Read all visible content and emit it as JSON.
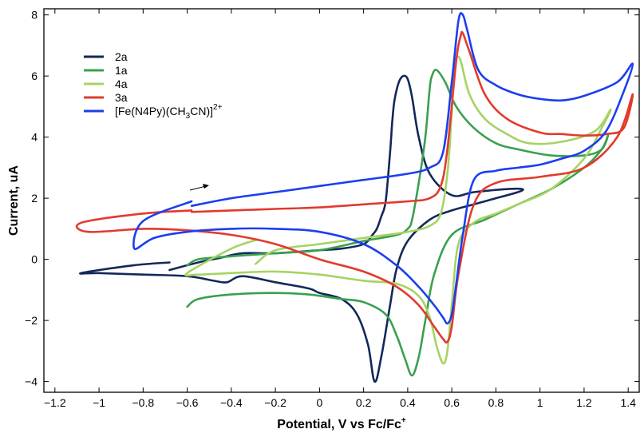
{
  "chart_data": {
    "type": "line",
    "title": "",
    "xlabel_main": "Potential, V vs Fc/Fc",
    "xlabel_sup": "+",
    "ylabel": "Current, uA",
    "xlim": [
      -1.25,
      1.45
    ],
    "ylim": [
      -4.35,
      8.2
    ],
    "x_ticks": [
      -1.2,
      -1,
      -0.8,
      -0.6,
      -0.4,
      -0.2,
      0,
      0.2,
      0.4,
      0.6,
      0.8,
      1,
      1.2,
      1.4
    ],
    "x_tick_labels": [
      "−1.2",
      "−1",
      "−0.8",
      "−0.6",
      "−0.4",
      "−0.2",
      "0",
      "0.2",
      "0.4",
      "0.6",
      "0.8",
      "1",
      "1.2",
      "1.4"
    ],
    "y_ticks": [
      -4,
      -2,
      0,
      2,
      4,
      6,
      8
    ],
    "y_tick_labels": [
      "−4",
      "−2",
      "0",
      "2",
      "4",
      "6",
      "8"
    ],
    "grid": false,
    "legend_position": "top-left",
    "annotation": "arrow indicating scan direction (positive)",
    "series": [
      {
        "name": "2a",
        "color": "#13285a",
        "x": [
          -0.68,
          -0.85,
          -1.08,
          -1.0,
          -0.8,
          -0.6,
          -0.48,
          -0.42,
          -0.35,
          -0.2,
          -0.05,
          0.0,
          0.1,
          0.17,
          0.22,
          0.25,
          0.28,
          0.32,
          0.35,
          0.4,
          0.5,
          0.6,
          0.7,
          0.8,
          0.9,
          0.92,
          0.85,
          0.7,
          0.6,
          0.5,
          0.45,
          0.42,
          0.4,
          0.38,
          0.36,
          0.34,
          0.33,
          0.32,
          0.3,
          0.28,
          0.26,
          0.24,
          0.2,
          0.1,
          0.0,
          -0.2,
          -0.35,
          -0.45,
          -0.55,
          -0.68
        ],
        "y": [
          -0.1,
          -0.2,
          -0.45,
          -0.45,
          -0.5,
          -0.55,
          -0.7,
          -0.75,
          -0.55,
          -0.75,
          -0.95,
          -1.1,
          -1.3,
          -1.8,
          -2.8,
          -4.0,
          -3.2,
          -1.5,
          -0.3,
          0.6,
          1.3,
          1.6,
          1.8,
          2.0,
          2.2,
          2.3,
          2.3,
          2.2,
          2.1,
          2.8,
          4.0,
          5.3,
          5.9,
          6.0,
          5.8,
          5.2,
          4.5,
          3.5,
          1.9,
          1.4,
          1.0,
          0.8,
          0.5,
          0.35,
          0.3,
          0.2,
          0.2,
          0.05,
          -0.1,
          -0.35
        ]
      },
      {
        "name": "1a",
        "color": "#3aa04e",
        "x": [
          -0.6,
          -0.55,
          -0.4,
          -0.2,
          -0.05,
          0.1,
          0.2,
          0.3,
          0.35,
          0.39,
          0.42,
          0.45,
          0.48,
          0.52,
          0.6,
          0.75,
          0.9,
          1.05,
          1.2,
          1.28,
          1.31,
          1.28,
          1.2,
          1.05,
          0.9,
          0.8,
          0.7,
          0.62,
          0.57,
          0.53,
          0.51,
          0.5,
          0.48,
          0.45,
          0.42,
          0.4,
          0.35,
          0.2,
          0.0,
          -0.2,
          -0.4,
          -0.55,
          -0.6
        ],
        "y": [
          -1.55,
          -1.3,
          -1.15,
          -1.1,
          -1.15,
          -1.3,
          -1.4,
          -1.8,
          -2.5,
          -3.3,
          -3.8,
          -3.2,
          -2.0,
          -0.5,
          0.8,
          1.3,
          1.8,
          2.3,
          3.0,
          3.6,
          4.1,
          3.6,
          3.4,
          3.4,
          3.6,
          3.8,
          4.3,
          5.0,
          5.8,
          6.2,
          6.0,
          5.6,
          4.0,
          2.5,
          1.3,
          1.0,
          0.8,
          0.6,
          0.3,
          0.2,
          0.1,
          0.0,
          -0.2
        ]
      },
      {
        "name": "4a",
        "color": "#a6d363",
        "x": [
          -0.28,
          -0.4,
          -0.6,
          -0.55,
          -0.4,
          -0.2,
          0.0,
          0.2,
          0.35,
          0.45,
          0.5,
          0.53,
          0.56,
          0.58,
          0.6,
          0.63,
          0.7,
          0.8,
          0.9,
          1.05,
          1.2,
          1.28,
          1.32,
          1.25,
          1.1,
          0.95,
          0.85,
          0.75,
          0.68,
          0.64,
          0.62,
          0.61,
          0.6,
          0.58,
          0.55,
          0.5,
          0.4,
          0.2,
          0.0,
          -0.2,
          -0.29
        ],
        "y": [
          0.65,
          0.35,
          -0.45,
          -0.5,
          -0.45,
          -0.4,
          -0.5,
          -0.7,
          -0.8,
          -1.2,
          -1.9,
          -2.8,
          -3.4,
          -3.0,
          -1.5,
          0.5,
          1.2,
          1.5,
          1.8,
          2.3,
          3.3,
          4.3,
          4.9,
          4.2,
          3.85,
          3.8,
          4.1,
          4.6,
          5.4,
          6.5,
          6.6,
          6.3,
          4.8,
          2.8,
          1.5,
          1.1,
          0.9,
          0.7,
          0.5,
          0.3,
          -0.15
        ]
      },
      {
        "name": "3a",
        "color": "#e23a2d",
        "x": [
          -0.58,
          -0.8,
          -1.08,
          -1.05,
          -0.8,
          -0.6,
          -0.4,
          -0.2,
          0.0,
          0.2,
          0.35,
          0.45,
          0.52,
          0.56,
          0.58,
          0.6,
          0.63,
          0.7,
          0.8,
          1.0,
          1.2,
          1.35,
          1.42,
          1.38,
          1.3,
          1.2,
          1.1,
          1.0,
          0.85,
          0.75,
          0.68,
          0.65,
          0.64,
          0.62,
          0.58,
          0.55,
          0.5,
          0.4,
          0.2,
          0.0,
          -0.2,
          -0.4,
          -0.58
        ],
        "y": [
          1.6,
          1.5,
          1.2,
          0.9,
          1.0,
          0.95,
          0.8,
          0.5,
          0.0,
          -0.4,
          -0.9,
          -1.5,
          -2.2,
          -2.6,
          -2.7,
          -2.2,
          -0.5,
          1.8,
          2.5,
          2.7,
          3.0,
          4.0,
          5.4,
          4.3,
          4.1,
          4.05,
          4.1,
          4.15,
          4.6,
          5.4,
          6.8,
          7.4,
          7.3,
          6.5,
          3.6,
          2.4,
          2.0,
          1.9,
          1.8,
          1.7,
          1.65,
          1.6,
          1.55
        ]
      },
      {
        "name": "[Fe(N4Py)(CH3CN)]2+",
        "color": "#1b3ef0",
        "x": [
          -0.58,
          -0.8,
          -0.84,
          -0.75,
          -0.6,
          -0.4,
          -0.2,
          0.0,
          0.2,
          0.35,
          0.45,
          0.52,
          0.56,
          0.58,
          0.6,
          0.62,
          0.65,
          0.7,
          0.8,
          0.9,
          1.0,
          1.1,
          1.2,
          1.3,
          1.38,
          1.42,
          1.35,
          1.2,
          1.1,
          1.0,
          0.9,
          0.8,
          0.72,
          0.67,
          0.65,
          0.63,
          0.6,
          0.56,
          0.5,
          0.4,
          0.2,
          0.0,
          -0.2,
          -0.4,
          -0.58
        ],
        "y": [
          1.9,
          1.25,
          0.35,
          0.7,
          0.9,
          1.0,
          1.0,
          0.9,
          0.5,
          -0.2,
          -0.9,
          -1.5,
          -1.9,
          -2.1,
          -1.8,
          -0.8,
          0.8,
          2.6,
          2.9,
          3.0,
          3.1,
          3.3,
          3.55,
          4.2,
          5.5,
          6.4,
          5.8,
          5.35,
          5.2,
          5.25,
          5.4,
          5.7,
          6.2,
          7.5,
          8.0,
          7.8,
          5.8,
          3.5,
          3.0,
          2.8,
          2.6,
          2.4,
          2.2,
          2.0,
          1.75
        ]
      }
    ]
  },
  "legend": [
    {
      "label": "2a",
      "color": "#13285a"
    },
    {
      "label": "1a",
      "color": "#3aa04e"
    },
    {
      "label": "4a",
      "color": "#a6d363"
    },
    {
      "label": "3a",
      "color": "#e23a2d"
    },
    {
      "label_main": "[Fe(N4Py)(CH",
      "label_sub1": "3",
      "label_mid": "CN)]",
      "label_sup": "2+",
      "color": "#1b3ef0"
    }
  ]
}
